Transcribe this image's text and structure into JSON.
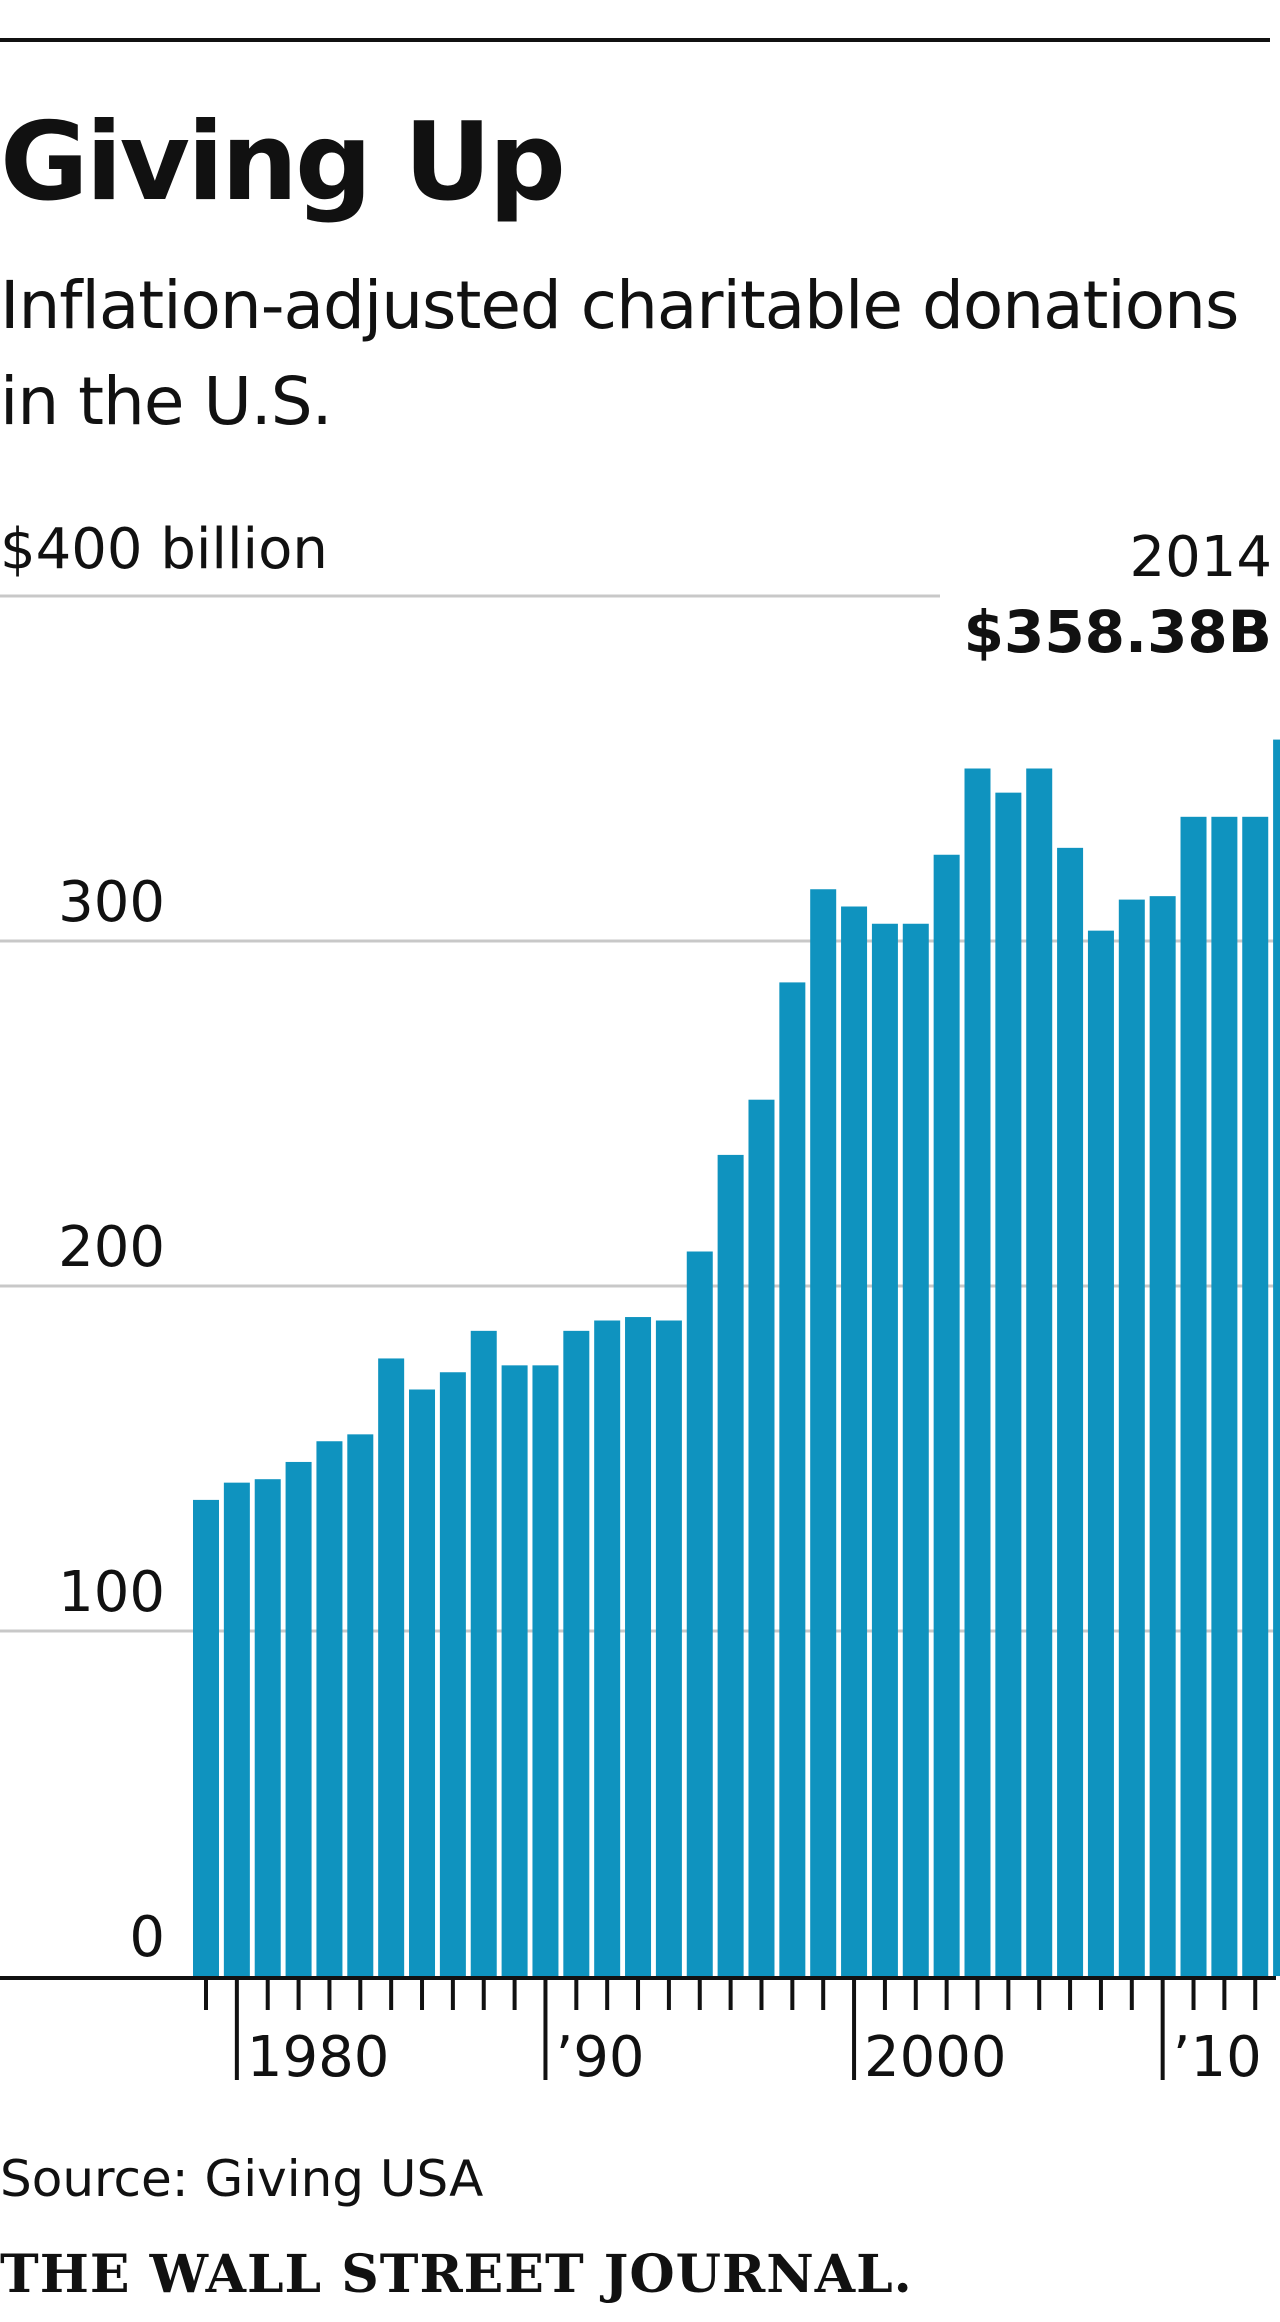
{
  "header": {
    "title": "Giving Up",
    "subtitle": "Inflation-adjusted charitable donations in the U.S."
  },
  "footer": {
    "source": "Source: Giving USA",
    "publisher": "THE WALL STREET JOURNAL."
  },
  "colors": {
    "bar": "#0f93bf",
    "grid": "#c8c8c8",
    "axis": "#111111",
    "text": "#111111"
  },
  "chart_data": {
    "type": "bar",
    "title": "Giving Up",
    "subtitle": "Inflation-adjusted charitable donations in the U.S.",
    "ylabel": "$400 billion",
    "ylim": [
      0,
      400
    ],
    "yticks": [
      0,
      100,
      200,
      300,
      400
    ],
    "ytick_labels": [
      "0",
      "100",
      "200",
      "300",
      "$400 billion"
    ],
    "grid": true,
    "categories": [
      1979,
      1980,
      1981,
      1982,
      1983,
      1984,
      1985,
      1986,
      1987,
      1988,
      1989,
      1990,
      1991,
      1992,
      1993,
      1994,
      1995,
      1996,
      1997,
      1998,
      1999,
      2000,
      2001,
      2002,
      2003,
      2004,
      2005,
      2006,
      2007,
      2008,
      2009,
      2010,
      2011,
      2012,
      2013,
      2014
    ],
    "values": [
      138,
      143,
      144,
      149,
      155,
      157,
      179,
      170,
      175,
      187,
      177,
      177,
      187,
      190,
      191,
      190,
      210,
      238,
      254,
      288,
      315,
      310,
      305,
      305,
      325,
      350,
      343,
      350,
      327,
      303,
      312,
      313,
      336,
      336,
      336,
      358.38
    ],
    "xtick_labels": [
      {
        "year": 1980,
        "label": "1980"
      },
      {
        "year": 1990,
        "label": "’90"
      },
      {
        "year": 2000,
        "label": "2000"
      },
      {
        "year": 2010,
        "label": "’10"
      }
    ],
    "annotation": {
      "year": 2014,
      "label_year": "2014",
      "label_value": "$358.38B"
    }
  }
}
